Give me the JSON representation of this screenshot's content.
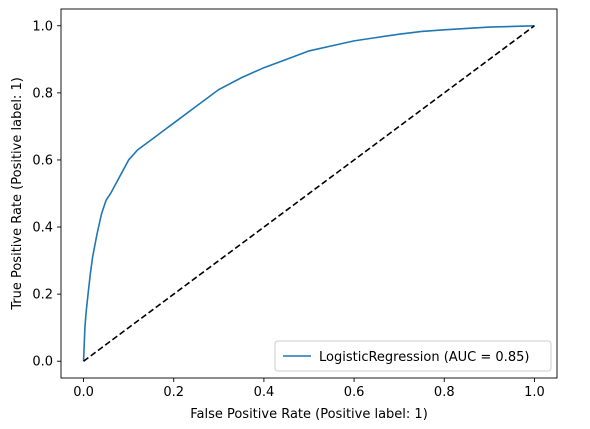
{
  "chart_data": {
    "type": "line",
    "title": "",
    "xlabel": "False Positive Rate (Positive label: 1)",
    "ylabel": "True Positive Rate (Positive label: 1)",
    "xlim": [
      -0.05,
      1.05
    ],
    "ylim": [
      -0.05,
      1.05
    ],
    "xticks": [
      "0.0",
      "0.2",
      "0.4",
      "0.6",
      "0.8",
      "1.0"
    ],
    "yticks": [
      "0.0",
      "0.2",
      "0.4",
      "0.6",
      "0.8",
      "1.0"
    ],
    "grid": false,
    "legend_position": "lower-right",
    "series": [
      {
        "name": "LogisticRegression (AUC = 0.85)",
        "color": "#1f77b4",
        "x": [
          0,
          0.003,
          0.006,
          0.01,
          0.015,
          0.02,
          0.03,
          0.04,
          0.05,
          0.06,
          0.08,
          0.1,
          0.12,
          0.15,
          0.18,
          0.2,
          0.25,
          0.3,
          0.35,
          0.4,
          0.45,
          0.5,
          0.55,
          0.6,
          0.65,
          0.7,
          0.75,
          0.8,
          0.85,
          0.9,
          0.95,
          1.0
        ],
        "y": [
          0,
          0.1,
          0.15,
          0.2,
          0.26,
          0.31,
          0.38,
          0.44,
          0.48,
          0.5,
          0.55,
          0.6,
          0.63,
          0.66,
          0.69,
          0.71,
          0.76,
          0.81,
          0.845,
          0.875,
          0.9,
          0.925,
          0.94,
          0.955,
          0.965,
          0.975,
          0.983,
          0.988,
          0.992,
          0.996,
          0.998,
          1.0
        ]
      },
      {
        "name": "",
        "color": "#000000",
        "dashed": true,
        "x": [
          0,
          1
        ],
        "y": [
          0,
          1
        ]
      }
    ]
  }
}
